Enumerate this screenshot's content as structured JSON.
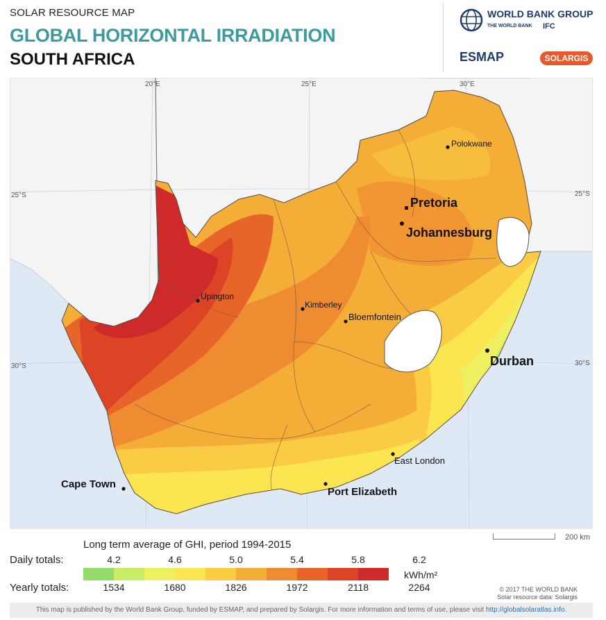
{
  "header": {
    "kicker": "SOLAR RESOURCE MAP",
    "title": "GLOBAL HORIZONTAL IRRADIATION",
    "subtitle": "SOUTH AFRICA"
  },
  "logos": {
    "world_bank_group": "WORLD BANK GROUP",
    "world_bank": "THE WORLD BANK",
    "ifc": "IFC",
    "esmap": "ESMAP",
    "solargis": "SOLARGIS"
  },
  "grid": {
    "lon_labels": [
      "20°E",
      "25°E",
      "30°E"
    ],
    "lat_labels": [
      "25°S",
      "25°S",
      "30°S",
      "30°S"
    ]
  },
  "cities": [
    {
      "name": "Polokwane",
      "size": "small"
    },
    {
      "name": "Pretoria",
      "size": "large"
    },
    {
      "name": "Johannesburg",
      "size": "large"
    },
    {
      "name": "Upington",
      "size": "small"
    },
    {
      "name": "Kimberley",
      "size": "small"
    },
    {
      "name": "Bloemfontein",
      "size": "small"
    },
    {
      "name": "Durban",
      "size": "large"
    },
    {
      "name": "East London",
      "size": "small"
    },
    {
      "name": "Port Elizabeth",
      "size": "medium"
    },
    {
      "name": "Cape Town",
      "size": "medium"
    }
  ],
  "credit": {
    "line1": "© 2017 THE WORLD BANK",
    "line2": "Solar resource data: Solargis"
  },
  "scale": {
    "label": "200 km"
  },
  "legend": {
    "title": "Long term average of GHI, period 1994-2015",
    "daily_label": "Daily totals:",
    "yearly_label": "Yearly totals:",
    "daily_ticks": [
      "4.2",
      "4.6",
      "5.0",
      "5.4",
      "5.8",
      "6.2"
    ],
    "yearly_ticks": [
      "1534",
      "1680",
      "1826",
      "1972",
      "2118",
      "2264"
    ],
    "unit": "kWh/m²",
    "colors": [
      "#93dc6b",
      "#c8ec62",
      "#eef062",
      "#fbe651",
      "#f9cc43",
      "#f4ae38",
      "#ef8b30",
      "#e8652a",
      "#dd4426",
      "#cf2a2a"
    ]
  },
  "footer": {
    "text": "This map is published by the World Bank Group, funded by ESMAP, and prepared by Solargis. For more information and terms of use, please visit",
    "link": "http://globalsolaratlas.info."
  }
}
